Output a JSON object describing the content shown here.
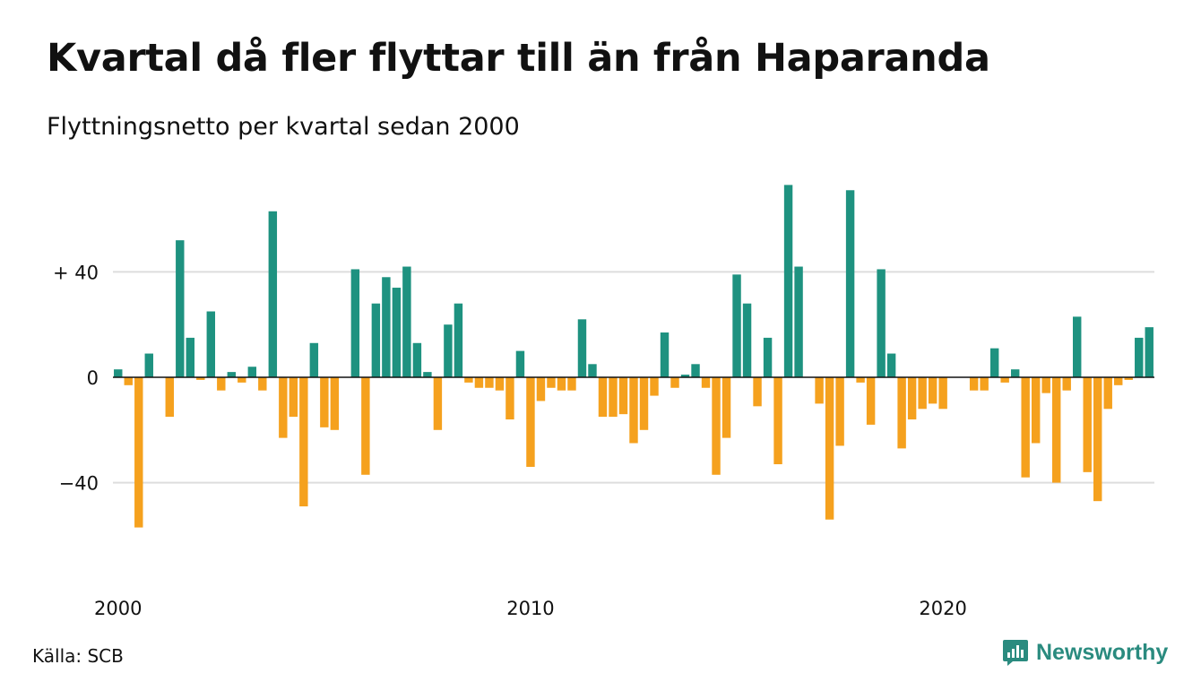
{
  "title": "Kvartal då fler flyttar till än från Haparanda",
  "subtitle": "Flyttningsnetto per kvartal sedan 2000",
  "source": "Källa: SCB",
  "brand": "Newsworthy",
  "colors": {
    "positive": "#1e9280",
    "negative": "#f5a11e",
    "grid": "#dddddd",
    "zero": "#111111"
  },
  "chart_data": {
    "type": "bar",
    "y_ticks": [
      {
        "value": 40,
        "label": "+ 40"
      },
      {
        "value": 0,
        "label": "0"
      },
      {
        "value": -40,
        "label": "−40"
      }
    ],
    "x_ticks": [
      {
        "index": 0,
        "label": "2000"
      },
      {
        "index": 40,
        "label": "2010"
      },
      {
        "index": 80,
        "label": "2020"
      }
    ],
    "ylim": [
      -70,
      75
    ],
    "values": [
      3,
      -3,
      -57,
      9,
      0,
      -15,
      52,
      15,
      -1,
      25,
      -5,
      2,
      -2,
      4,
      -5,
      63,
      -23,
      -15,
      -49,
      13,
      -19,
      -20,
      0,
      41,
      -37,
      28,
      38,
      34,
      42,
      13,
      2,
      -20,
      20,
      28,
      -2,
      -4,
      -4,
      -5,
      -16,
      10,
      -34,
      -9,
      -4,
      -5,
      -5,
      22,
      5,
      -15,
      -15,
      -14,
      -25,
      -20,
      -7,
      17,
      -4,
      1,
      5,
      -4,
      -37,
      -23,
      39,
      28,
      -11,
      15,
      -33,
      73,
      42,
      0,
      -10,
      -54,
      -26,
      71,
      -2,
      -18,
      41,
      9,
      -27,
      -16,
      -12,
      -10,
      -12,
      0,
      0,
      -5,
      -5,
      11,
      -2,
      3,
      -38,
      -25,
      -6,
      -40,
      -5,
      23,
      -36,
      -47,
      -12,
      -3,
      -1,
      15,
      19
    ]
  }
}
